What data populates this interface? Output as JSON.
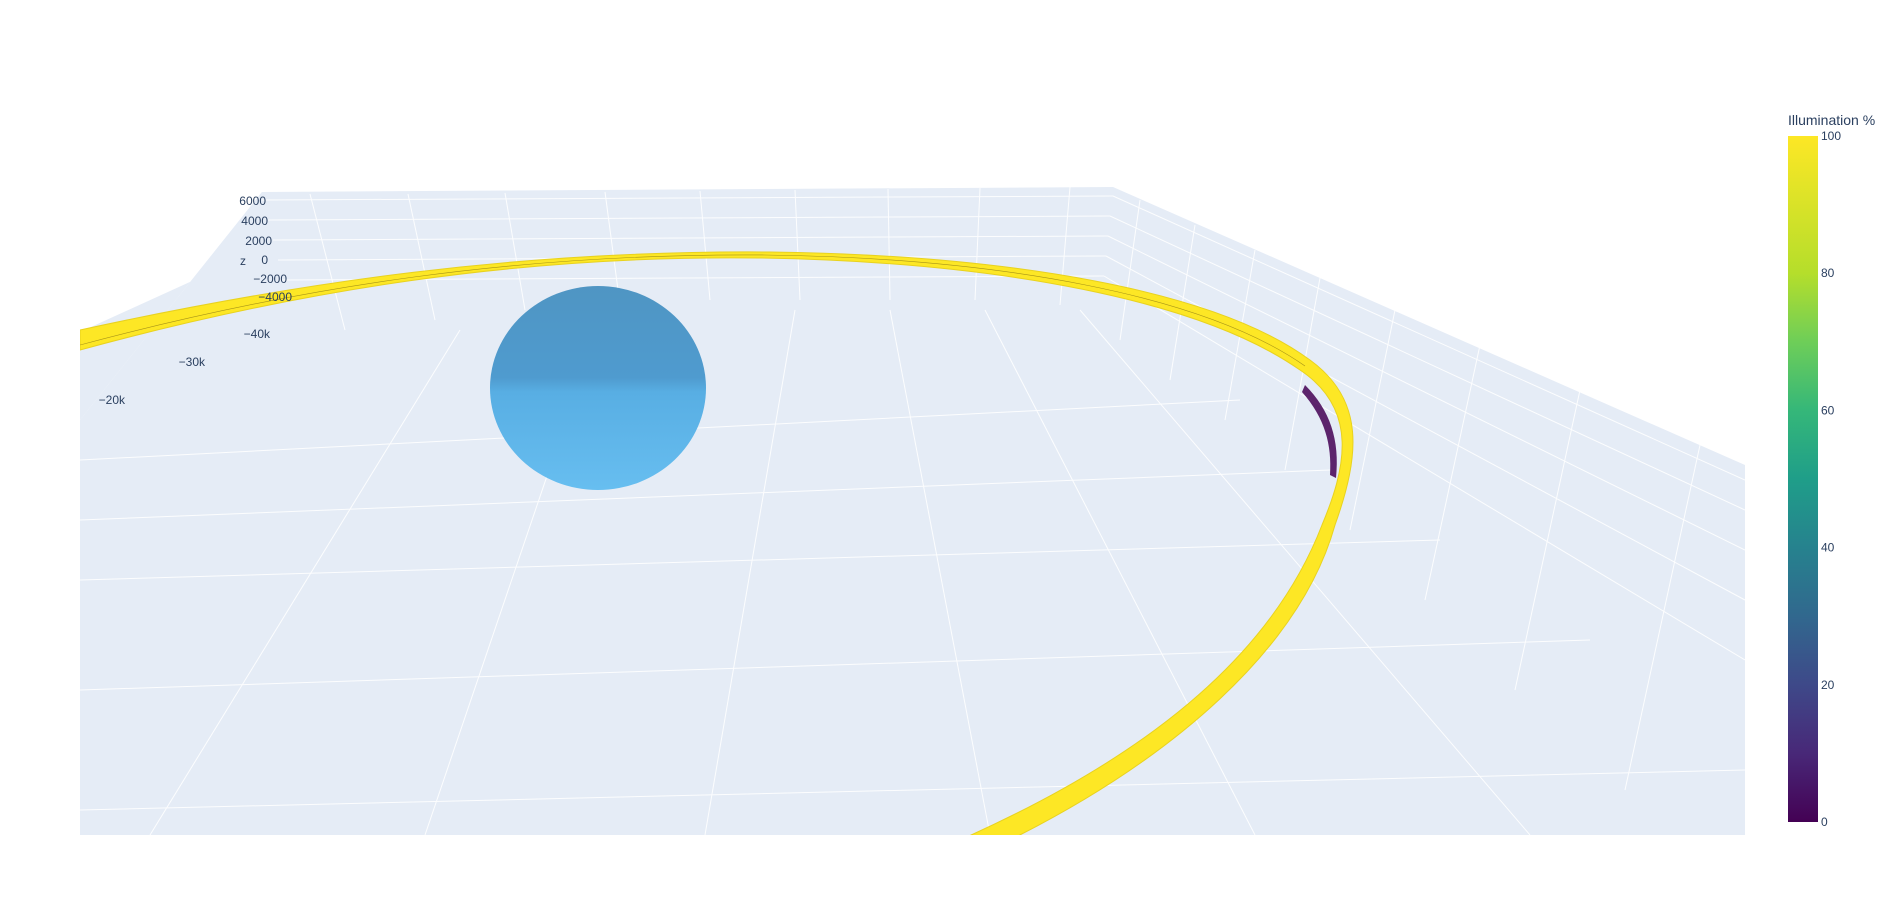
{
  "chart_data": {
    "type": "3d-surface",
    "colorbar": {
      "title": "Illumination %",
      "range": [
        0,
        100
      ],
      "ticks": [
        "0",
        "20",
        "40",
        "60",
        "80",
        "100"
      ],
      "colorscale": "viridis"
    },
    "scene": {
      "background": "#e5ecf6",
      "z_axis": {
        "label": "z",
        "ticks": [
          "6000",
          "4000",
          "2000",
          "0",
          "−2000",
          "−4000"
        ]
      },
      "y_axis": {
        "ticks": [
          "−40k",
          "−30k",
          "−20k"
        ]
      }
    },
    "traces": [
      {
        "name": "",
        "kind": "sphere",
        "color": "#5aaee3"
      },
      {
        "name": "",
        "kind": "orbit-ribbon",
        "illumination_range": [
          0,
          100
        ]
      }
    ]
  }
}
